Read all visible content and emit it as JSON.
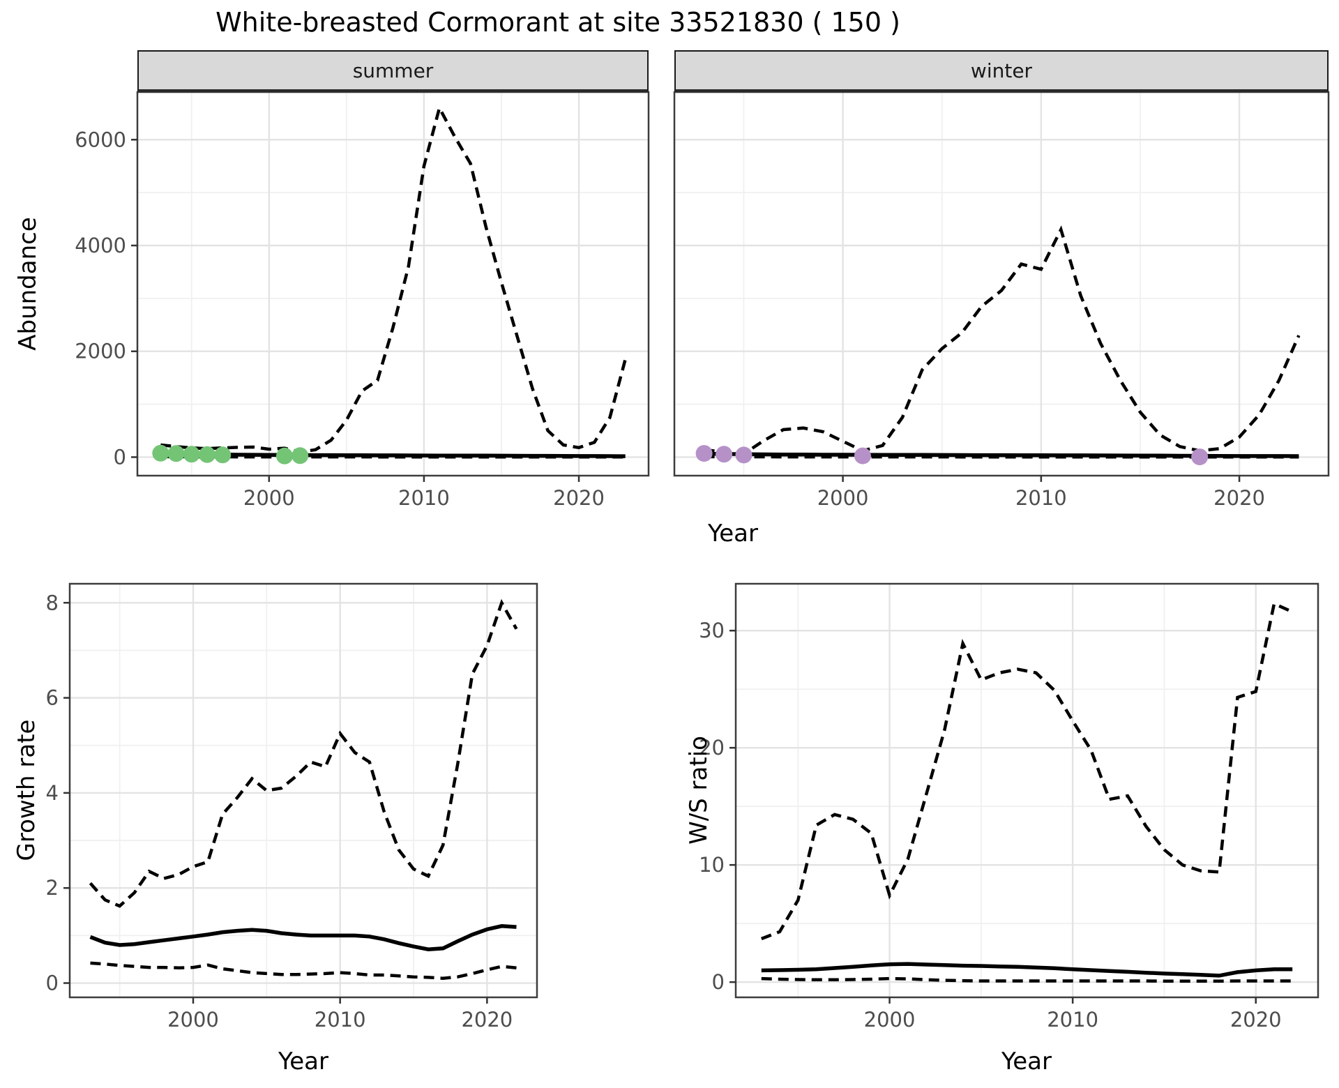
{
  "title": "White-breasted Cormorant at site 33521830 ( 150 )",
  "colors": {
    "summer_points": "#74C476",
    "winter_points": "#B591C8",
    "line": "#000000",
    "strip_fill": "#D9D9D9",
    "panel_border": "#3C3C3C",
    "grid_major": "#E3E3E3",
    "grid_minor": "#F0F0F0",
    "tick": "#333333",
    "tick_text": "#4D4D4D",
    "background": "#FFFFFF"
  },
  "chart_data": [
    {
      "type": "line",
      "facet": "summer",
      "xlabel": "Year",
      "ylabel": "Abundance",
      "x_ticks": [
        2000,
        2010,
        2020
      ],
      "y_ticks": [
        0,
        2000,
        4000,
        6000
      ],
      "xlim": [
        1991.5,
        2024.5
      ],
      "ylim": [
        -350,
        6900
      ],
      "years": [
        1993,
        1994,
        1995,
        1996,
        1997,
        1998,
        1999,
        2000,
        2001,
        2002,
        2003,
        2004,
        2005,
        2006,
        2007,
        2008,
        2009,
        2010,
        2011,
        2012,
        2013,
        2014,
        2015,
        2016,
        2017,
        2018,
        2019,
        2020,
        2021,
        2022,
        2023
      ],
      "series": [
        {
          "name": "upper_ci",
          "style": "dashed",
          "values": [
            230,
            200,
            175,
            160,
            175,
            185,
            190,
            150,
            170,
            95,
            140,
            320,
            700,
            1250,
            1450,
            2450,
            3600,
            5500,
            6600,
            6050,
            5550,
            4350,
            3300,
            2300,
            1300,
            500,
            230,
            180,
            280,
            750,
            1850
          ]
        },
        {
          "name": "median",
          "style": "solid",
          "values": [
            60,
            57,
            54,
            51,
            48,
            46,
            44,
            42,
            40,
            39,
            38,
            37,
            36,
            35,
            34,
            33,
            32,
            31,
            30,
            30,
            29,
            28,
            27,
            26,
            25,
            24,
            22,
            21,
            20,
            19,
            18
          ]
        },
        {
          "name": "lower_ci",
          "style": "dashed",
          "values": [
            8,
            7,
            7,
            6,
            6,
            5,
            5,
            5,
            5,
            4,
            4,
            4,
            4,
            4,
            3,
            3,
            3,
            3,
            3,
            3,
            3,
            3,
            2,
            2,
            2,
            2,
            2,
            2,
            2,
            2,
            2
          ]
        }
      ],
      "points": {
        "name": "observed_abundance_summer",
        "color": "#74C476",
        "years": [
          1993,
          1994,
          1995,
          1996,
          1997,
          2001,
          2002
        ],
        "values": [
          75,
          68,
          55,
          48,
          42,
          22,
          28
        ]
      }
    },
    {
      "type": "line",
      "facet": "winter",
      "xlabel": "Year",
      "ylabel": "",
      "x_ticks": [
        2000,
        2010,
        2020
      ],
      "y_ticks": [
        0,
        2000,
        4000,
        6000
      ],
      "xlim": [
        1991.5,
        2024.5
      ],
      "ylim": [
        -350,
        6900
      ],
      "years": [
        1993,
        1994,
        1995,
        1996,
        1997,
        1998,
        1999,
        2000,
        2001,
        2002,
        2003,
        2004,
        2005,
        2006,
        2007,
        2008,
        2009,
        2010,
        2011,
        2012,
        2013,
        2014,
        2015,
        2016,
        2017,
        2018,
        2019,
        2020,
        2021,
        2022,
        2023
      ],
      "series": [
        {
          "name": "upper_ci",
          "style": "dashed",
          "values": [
            140,
            95,
            60,
            310,
            520,
            550,
            480,
            300,
            120,
            220,
            750,
            1650,
            2050,
            2350,
            2850,
            3150,
            3650,
            3550,
            4300,
            3050,
            2150,
            1450,
            850,
            420,
            200,
            120,
            160,
            380,
            800,
            1450,
            2300
          ]
        },
        {
          "name": "median",
          "style": "solid",
          "values": [
            65,
            60,
            55,
            52,
            50,
            48,
            46,
            45,
            44,
            43,
            42,
            41,
            40,
            39,
            38,
            37,
            36,
            35,
            34,
            33,
            32,
            31,
            30,
            28,
            26,
            24,
            22,
            21,
            20,
            20,
            19
          ]
        },
        {
          "name": "lower_ci",
          "style": "dashed",
          "values": [
            8,
            7,
            6,
            6,
            5,
            5,
            5,
            5,
            4,
            4,
            4,
            4,
            4,
            3,
            3,
            3,
            3,
            3,
            3,
            3,
            3,
            2,
            2,
            2,
            2,
            2,
            2,
            2,
            2,
            2,
            2
          ]
        }
      ],
      "points": {
        "name": "observed_abundance_winter",
        "color": "#B591C8",
        "years": [
          1993,
          1994,
          1995,
          2001,
          2018
        ],
        "values": [
          70,
          55,
          40,
          25,
          5
        ]
      }
    },
    {
      "type": "line",
      "facet": "",
      "xlabel": "Year",
      "ylabel": "Growth rate",
      "x_ticks": [
        2000,
        2010,
        2020
      ],
      "y_ticks": [
        0,
        2,
        4,
        6,
        8
      ],
      "xlim": [
        1991.6,
        2023.4
      ],
      "ylim": [
        -0.3,
        8.4
      ],
      "years": [
        1993,
        1994,
        1995,
        1996,
        1997,
        1998,
        1999,
        2000,
        2001,
        2002,
        2003,
        2004,
        2005,
        2006,
        2007,
        2008,
        2009,
        2010,
        2011,
        2012,
        2013,
        2014,
        2015,
        2016,
        2017,
        2018,
        2019,
        2020,
        2021,
        2022
      ],
      "series": [
        {
          "name": "upper_ci",
          "style": "dashed",
          "values": [
            2.1,
            1.75,
            1.62,
            1.9,
            2.35,
            2.2,
            2.28,
            2.45,
            2.55,
            3.55,
            3.9,
            4.3,
            4.05,
            4.1,
            4.35,
            4.65,
            4.55,
            5.25,
            4.85,
            4.65,
            3.6,
            2.8,
            2.4,
            2.25,
            2.9,
            4.6,
            6.5,
            7.1,
            8.0,
            7.45
          ]
        },
        {
          "name": "median",
          "style": "solid",
          "values": [
            0.97,
            0.85,
            0.8,
            0.82,
            0.86,
            0.9,
            0.94,
            0.98,
            1.02,
            1.07,
            1.1,
            1.12,
            1.1,
            1.05,
            1.02,
            1.0,
            1.0,
            1.0,
            1.0,
            0.98,
            0.92,
            0.84,
            0.77,
            0.71,
            0.73,
            0.88,
            1.02,
            1.13,
            1.2,
            1.18
          ]
        },
        {
          "name": "lower_ci",
          "style": "dashed",
          "values": [
            0.42,
            0.4,
            0.37,
            0.35,
            0.33,
            0.33,
            0.32,
            0.33,
            0.38,
            0.3,
            0.26,
            0.22,
            0.2,
            0.18,
            0.18,
            0.19,
            0.2,
            0.22,
            0.2,
            0.17,
            0.17,
            0.15,
            0.13,
            0.12,
            0.1,
            0.13,
            0.2,
            0.28,
            0.35,
            0.32
          ]
        }
      ]
    },
    {
      "type": "line",
      "facet": "",
      "xlabel": "Year",
      "ylabel": "W/S ratio",
      "x_ticks": [
        2000,
        2010,
        2020
      ],
      "y_ticks": [
        0,
        10,
        20,
        30
      ],
      "xlim": [
        1991.6,
        2023.4
      ],
      "ylim": [
        -1.3,
        34
      ],
      "years": [
        1993,
        1994,
        1995,
        1996,
        1997,
        1998,
        1999,
        2000,
        2001,
        2002,
        2003,
        2004,
        2005,
        2006,
        2007,
        2008,
        2009,
        2010,
        2011,
        2012,
        2013,
        2014,
        2015,
        2016,
        2017,
        2018,
        2019,
        2020,
        2021,
        2022
      ],
      "series": [
        {
          "name": "upper_ci",
          "style": "dashed",
          "values": [
            3.7,
            4.3,
            7.0,
            13.4,
            14.3,
            13.9,
            12.7,
            7.4,
            10.5,
            16.0,
            21.5,
            28.9,
            25.8,
            26.4,
            26.7,
            26.4,
            24.9,
            22.3,
            19.8,
            15.6,
            15.9,
            13.3,
            11.3,
            10.0,
            9.5,
            9.4,
            24.3,
            24.8,
            32.3,
            31.6
          ]
        },
        {
          "name": "median",
          "style": "solid",
          "values": [
            1.0,
            1.02,
            1.05,
            1.1,
            1.2,
            1.3,
            1.42,
            1.52,
            1.55,
            1.5,
            1.45,
            1.4,
            1.38,
            1.33,
            1.3,
            1.25,
            1.18,
            1.1,
            1.02,
            0.95,
            0.88,
            0.8,
            0.73,
            0.68,
            0.62,
            0.55,
            0.85,
            1.0,
            1.1,
            1.1
          ]
        },
        {
          "name": "lower_ci",
          "style": "dashed",
          "values": [
            0.3,
            0.25,
            0.22,
            0.2,
            0.2,
            0.22,
            0.25,
            0.3,
            0.28,
            0.2,
            0.15,
            0.12,
            0.1,
            0.1,
            0.1,
            0.1,
            0.1,
            0.1,
            0.1,
            0.1,
            0.1,
            0.1,
            0.08,
            0.08,
            0.08,
            0.08,
            0.1,
            0.1,
            0.1,
            0.1
          ]
        }
      ]
    }
  ]
}
